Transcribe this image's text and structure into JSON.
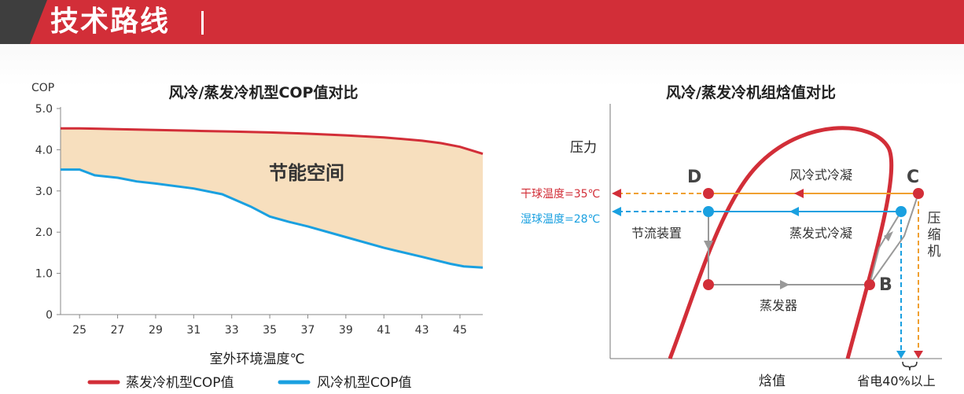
{
  "header": {
    "title": "技术路线",
    "accent_color": "#d22e38",
    "dark_color": "#3e3e3e"
  },
  "chart_data": [
    {
      "type": "line",
      "title": "风冷/蒸发冷机型COP值对比",
      "ylabel": "COP",
      "xlabel": "室外环境温度℃",
      "xlim": [
        24,
        46.2
      ],
      "ylim": [
        0,
        5.0
      ],
      "x_ticks": [
        25,
        27,
        29,
        31,
        33,
        35,
        37,
        39,
        41,
        43,
        45
      ],
      "y_ticks": [
        {
          "value": 0,
          "label": "0"
        },
        {
          "value": 1.0,
          "label": "1.0"
        },
        {
          "value": 2.0,
          "label": "2.0"
        },
        {
          "value": 3.0,
          "label": "3.0"
        },
        {
          "value": 4.0,
          "label": "4.0"
        },
        {
          "value": 5.0,
          "label": "5.0"
        }
      ],
      "grid": false,
      "legend_position": "bottom",
      "annotation": "节能空间",
      "fill_between_color": "#f7dfbe",
      "series": [
        {
          "name": "蒸发冷机型COP值",
          "color": "#d22e38",
          "x": [
            24,
            25,
            27,
            29,
            31,
            33,
            35,
            37,
            39,
            41,
            43,
            44,
            45,
            46.2
          ],
          "y": [
            4.52,
            4.52,
            4.5,
            4.48,
            4.46,
            4.44,
            4.42,
            4.39,
            4.35,
            4.3,
            4.22,
            4.16,
            4.07,
            3.9
          ]
        },
        {
          "name": "风冷机型COP值",
          "color": "#1aa0e0",
          "x": [
            24,
            25,
            25.8,
            27,
            28,
            29,
            31,
            32.5,
            34,
            35,
            36,
            37,
            39,
            41,
            43,
            44.5,
            45.2,
            46.2
          ],
          "y": [
            3.52,
            3.52,
            3.38,
            3.32,
            3.23,
            3.18,
            3.06,
            2.92,
            2.62,
            2.38,
            2.25,
            2.14,
            1.88,
            1.62,
            1.4,
            1.23,
            1.17,
            1.14
          ]
        }
      ]
    },
    {
      "type": "diagram",
      "title": "风冷/蒸发冷机组焓值对比",
      "ylabel": "压力",
      "xlabel": "焓值",
      "points": [
        "D",
        "C",
        "B"
      ],
      "labels": {
        "air_condensing": "风冷式冷凝",
        "evap_condensing": "蒸发式冷凝",
        "throttle": "节流装置",
        "evaporator": "蒸发器",
        "compressor": "压缩机",
        "dry_bulb": "干球温度=35℃",
        "wet_bulb": "湿球温度=28℃",
        "saving": "省电40%以上"
      },
      "colors": {
        "red": "#d22e38",
        "blue": "#1aa0e0",
        "orange": "#f0a030",
        "gray": "#999999"
      }
    }
  ]
}
